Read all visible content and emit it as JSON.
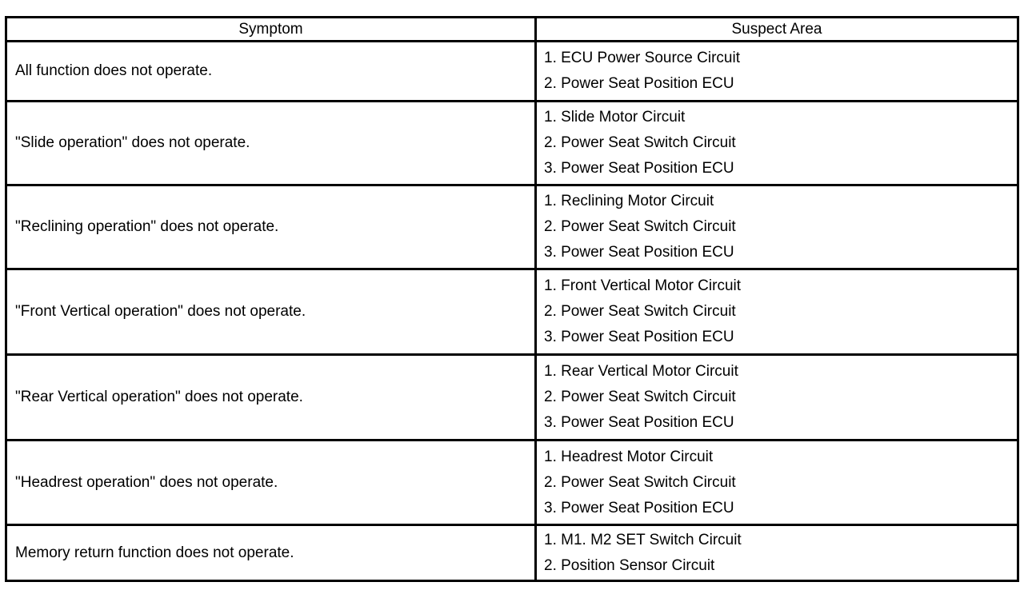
{
  "table": {
    "headers": [
      "Symptom",
      "Suspect Area"
    ],
    "rows": [
      {
        "symptom": "All function does not operate.",
        "suspects": [
          "1. ECU Power Source Circuit",
          "2. Power Seat Position ECU"
        ]
      },
      {
        "symptom": "\"Slide operation\" does not operate.",
        "suspects": [
          "1. Slide Motor Circuit",
          "2. Power Seat Switch Circuit",
          "3. Power Seat Position ECU"
        ]
      },
      {
        "symptom": "\"Reclining operation\" does not operate.",
        "suspects": [
          "1. Reclining Motor Circuit",
          "2. Power Seat Switch Circuit",
          "3. Power Seat Position ECU"
        ]
      },
      {
        "symptom": "\"Front Vertical operation\" does not operate.",
        "suspects": [
          "1. Front Vertical Motor Circuit",
          "2. Power Seat Switch Circuit",
          "3. Power Seat Position ECU"
        ]
      },
      {
        "symptom": "\"Rear Vertical operation\" does not operate.",
        "suspects": [
          "1. Rear Vertical Motor Circuit",
          "2. Power Seat Switch Circuit",
          "3. Power Seat Position ECU"
        ]
      },
      {
        "symptom": "\"Headrest operation\" does not operate.",
        "suspects": [
          "1. Headrest Motor Circuit",
          "2. Power Seat Switch Circuit",
          "3. Power Seat Position ECU"
        ]
      },
      {
        "symptom": "Memory return function does not operate.",
        "suspects": [
          "1. M1. M2 SET Switch Circuit",
          "2. Position Sensor Circuit"
        ]
      }
    ]
  }
}
